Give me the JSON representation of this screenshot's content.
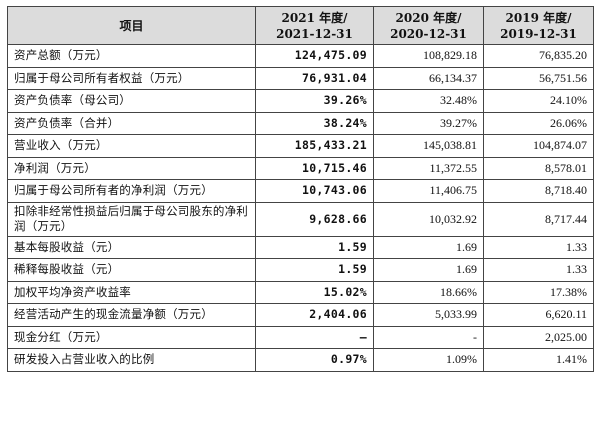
{
  "table": {
    "headers": {
      "item": "项目",
      "y2021_line1": "2021 年度/",
      "y2021_line2": "2021-12-31",
      "y2020_line1": "2020 年度/",
      "y2020_line2": "2020-12-31",
      "y2019_line1": "2019 年度/",
      "y2019_line2": "2019-12-31"
    },
    "rows": [
      {
        "label": "资产总额（万元）",
        "v2021": "124,475.09",
        "v2020": "108,829.18",
        "v2019": "76,835.20"
      },
      {
        "label": "归属于母公司所有者权益（万元）",
        "v2021": "76,931.04",
        "v2020": "66,134.37",
        "v2019": "56,751.56"
      },
      {
        "label": "资产负债率（母公司）",
        "v2021": "39.26%",
        "v2020": "32.48%",
        "v2019": "24.10%"
      },
      {
        "label": "资产负债率（合并）",
        "v2021": "38.24%",
        "v2020": "39.27%",
        "v2019": "26.06%"
      },
      {
        "label": "营业收入（万元）",
        "v2021": "185,433.21",
        "v2020": "145,038.81",
        "v2019": "104,874.07"
      },
      {
        "label": "净利润（万元）",
        "v2021": "10,715.46",
        "v2020": "11,372.55",
        "v2019": "8,578.01"
      },
      {
        "label": "归属于母公司所有者的净利润（万元）",
        "v2021": "10,743.06",
        "v2020": "11,406.75",
        "v2019": "8,718.40"
      },
      {
        "label": "扣除非经常性损益后归属于母公司股东的净利润（万元）",
        "v2021": "9,628.66",
        "v2020": "10,032.92",
        "v2019": "8,717.44"
      },
      {
        "label": "基本每股收益（元）",
        "v2021": "1.59",
        "v2020": "1.69",
        "v2019": "1.33"
      },
      {
        "label": "稀释每股收益（元）",
        "v2021": "1.59",
        "v2020": "1.69",
        "v2019": "1.33"
      },
      {
        "label": "加权平均净资产收益率",
        "v2021": "15.02%",
        "v2020": "18.66%",
        "v2019": "17.38%"
      },
      {
        "label": "经营活动产生的现金流量净额（万元）",
        "v2021": "2,404.06",
        "v2020": "5,033.99",
        "v2019": "6,620.11"
      },
      {
        "label": "现金分红（万元）",
        "v2021": "–",
        "v2020": "-",
        "v2019": "2,025.00"
      },
      {
        "label": "研发投入占营业收入的比例",
        "v2021": "0.97%",
        "v2020": "1.09%",
        "v2019": "1.41%"
      }
    ]
  }
}
